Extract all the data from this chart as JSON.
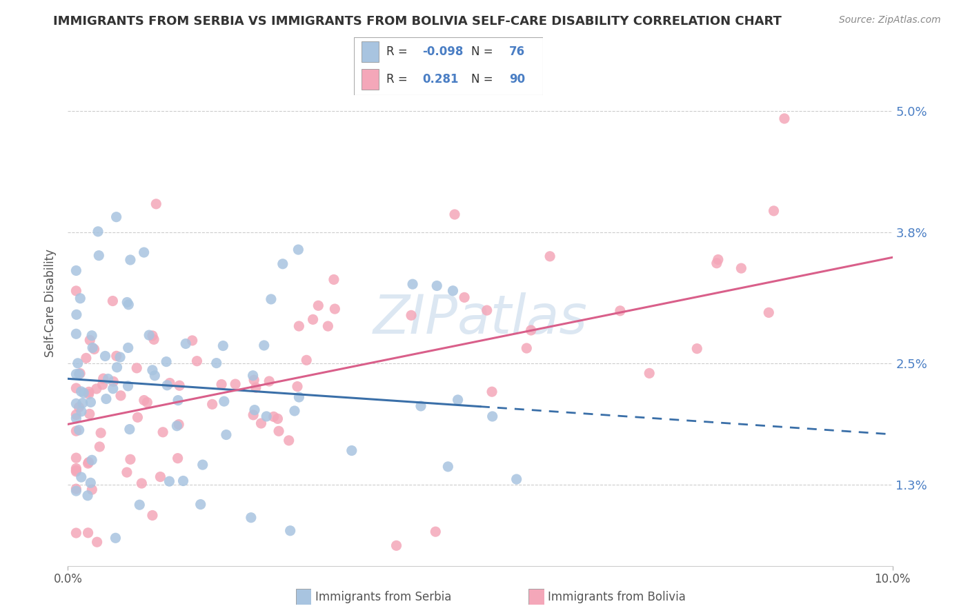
{
  "title": "IMMIGRANTS FROM SERBIA VS IMMIGRANTS FROM BOLIVIA SELF-CARE DISABILITY CORRELATION CHART",
  "source": "Source: ZipAtlas.com",
  "ylabel": "Self-Care Disability",
  "yticks": [
    0.013,
    0.025,
    0.038,
    0.05
  ],
  "ytick_labels": [
    "1.3%",
    "2.5%",
    "3.8%",
    "5.0%"
  ],
  "xlim": [
    0.0,
    0.1
  ],
  "ylim": [
    0.005,
    0.057
  ],
  "watermark": "ZIPatlas",
  "legend_R1": "-0.098",
  "legend_N1": "76",
  "legend_R2": "0.281",
  "legend_N2": "90",
  "serbia_color": "#a8c4e0",
  "bolivia_color": "#f4a7b9",
  "serbia_line_color": "#3a6fa8",
  "bolivia_line_color": "#d95f8a",
  "title_fontsize": 13,
  "source_fontsize": 10,
  "tick_label_color": "#4a7ec4"
}
